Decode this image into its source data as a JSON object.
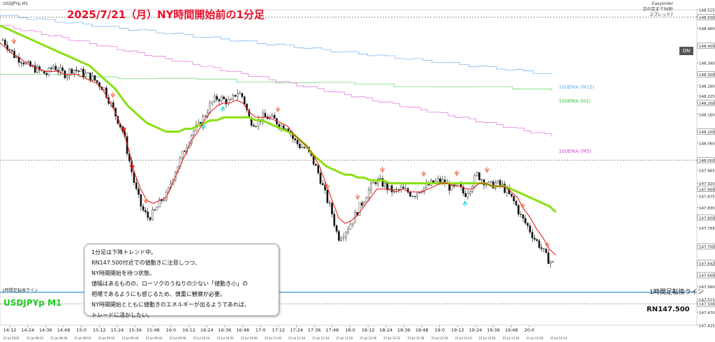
{
  "header": {
    "title": "2025/7/21（月）NY時間開始前の1分足",
    "symbol": "USDJPYp,M1",
    "top_right_1": "Easyorder",
    "top_right_2": "次の足まで56秒",
    "top_right_3": "スプレッド7",
    "on_button": "ON"
  },
  "ema_labels": {
    "m15": "100EMA (M15)",
    "h1": "100EMA (H1)",
    "m5": "100EMA (M5)"
  },
  "note": {
    "lines": [
      "1分足は下降トレンド中。",
      "RN147.500付近での値動きに注目しつつ、",
      "NY時間開始を待つ状態。",
      "値幅はあるものの、ローソクのうねりの少ない「値動き小」の",
      "相場であるようにも感じるため、慎重に観察が必要。",
      "NY時間開始とともに値動きのエネルギーが出るようであれば、",
      "トレードに活かしたい。"
    ]
  },
  "bottom": {
    "symbol_label": "USDJPYp M1",
    "rn_label": "RN147.500",
    "line_label_left": "1時間足転換ライン",
    "line_label_right": "1時間足転換ライン"
  },
  "colors": {
    "candle": "#111111",
    "ema_fast": "#e82020",
    "ema_slow": "#88e010",
    "ema_m15": "#6ab0f0",
    "ema_h1": "#60d060",
    "ema_m5": "#e070e0",
    "arrow_down": "#f08060",
    "arrow_up": "#40d8e8",
    "arrow_down_strong": "#d01010",
    "turn_line": "#3399dd"
  },
  "chart_data": {
    "type": "candlestick",
    "y_ticks": [
      "148.525",
      "148.500",
      "148.460",
      "148.400",
      "148.340",
      "148.300",
      "148.260",
      "148.225",
      "148.200",
      "148.160",
      "148.100",
      "148.060",
      "148.000",
      "147.965",
      "147.920",
      "147.900",
      "147.875",
      "147.835",
      "147.800",
      "147.765",
      "147.700",
      "147.642",
      "147.600",
      "147.560",
      "147.515",
      "147.500",
      "147.470",
      "147.425"
    ],
    "ylim": [
      147.425,
      148.525
    ],
    "x_major_ticks": [
      "14:12",
      "14:24",
      "14:36",
      "14:48",
      "15:0",
      "15:12",
      "15:24",
      "15:36",
      "15:48",
      "16:0",
      "16:12",
      "16:24",
      "16:36",
      "16:48",
      "17:0",
      "17:12",
      "17:24",
      "17:36",
      "17:48",
      "18:0",
      "18:12",
      "18:24",
      "18:36",
      "18:48",
      "19:0",
      "19:12",
      "19:24",
      "19:36",
      "19:48",
      "20:0"
    ],
    "x_minor_ticks": [
      "21 Jul 2025",
      "21 Jul 08:22",
      "21 Jul 08:38",
      "21 Jul 08:54",
      "21 Jul 09:10",
      "21 Jul 09:26",
      "21 Jul 09:42",
      "21 Jul 09:58",
      "21 Jul 10:14",
      "21 Jul 10:30",
      "21 Jul 10:46",
      "21 Jul 11:02",
      "21 Jul 11:18",
      "21 Jul 11:34",
      "21 Jul 11:50",
      "21 Jul 12:06",
      "21 Jul 12:22",
      "21 Jul 12:38",
      "21 Jul 12:54",
      "21 Jul 13:10",
      "21 Jul 13:26",
      "21 Jul 13:42",
      "21 Jul 13:58",
      "21 Jul 14:14"
    ],
    "dotted_levels": [
      148.5,
      148.0,
      147.5
    ],
    "turn_line_level": 147.54,
    "close_path": [
      148.42,
      148.39,
      148.36,
      148.35,
      148.33,
      148.32,
      148.31,
      148.3,
      148.33,
      148.31,
      148.3,
      148.32,
      148.31,
      148.3,
      148.29,
      148.27,
      148.25,
      148.2,
      148.15,
      148.1,
      148.0,
      147.9,
      147.83,
      147.8,
      147.82,
      147.86,
      147.88,
      147.95,
      148.0,
      148.05,
      148.1,
      148.12,
      148.16,
      148.2,
      148.22,
      148.21,
      148.2,
      148.24,
      148.22,
      148.14,
      148.13,
      148.15,
      148.15,
      148.14,
      148.12,
      148.12,
      148.07,
      148.05,
      148.04,
      148.0,
      147.95,
      147.88,
      147.82,
      147.73,
      147.75,
      147.78,
      147.82,
      147.86,
      147.9,
      147.93,
      147.92,
      147.9,
      147.89,
      147.9,
      147.89,
      147.88,
      147.9,
      147.91,
      147.92,
      147.93,
      147.92,
      147.9,
      147.91,
      147.88,
      147.91,
      147.95,
      147.93,
      147.91,
      147.92,
      147.91,
      147.88,
      147.85,
      147.8,
      147.77,
      147.73,
      147.7,
      147.66,
      147.64
    ],
    "ema_fast": [
      148.41,
      148.39,
      148.37,
      148.36,
      148.34,
      148.33,
      148.32,
      148.31,
      148.31,
      148.31,
      148.3,
      148.3,
      148.3,
      148.29,
      148.28,
      148.27,
      148.25,
      148.21,
      148.17,
      148.12,
      148.05,
      147.96,
      147.9,
      147.86,
      147.85,
      147.86,
      147.87,
      147.92,
      147.97,
      148.02,
      148.07,
      148.1,
      148.14,
      148.17,
      148.19,
      148.2,
      148.2,
      148.21,
      148.2,
      148.17,
      148.15,
      148.15,
      148.15,
      148.14,
      148.13,
      148.12,
      148.09,
      148.07,
      148.05,
      148.02,
      147.98,
      147.92,
      147.86,
      147.8,
      147.78,
      147.79,
      147.81,
      147.84,
      147.87,
      147.9,
      147.9,
      147.9,
      147.89,
      147.9,
      147.89,
      147.89,
      147.89,
      147.9,
      147.91,
      147.92,
      147.92,
      147.91,
      147.91,
      147.9,
      147.9,
      147.92,
      147.92,
      147.91,
      147.91,
      147.91,
      147.89,
      147.87,
      147.83,
      147.8,
      147.76,
      147.73,
      147.69,
      147.67
    ],
    "ema_slow": [
      148.47,
      148.46,
      148.45,
      148.44,
      148.43,
      148.42,
      148.41,
      148.4,
      148.39,
      148.38,
      148.37,
      148.36,
      148.35,
      148.34,
      148.33,
      148.31,
      148.29,
      148.27,
      148.25,
      148.22,
      148.19,
      148.17,
      148.15,
      148.13,
      148.12,
      148.11,
      148.1,
      148.1,
      148.1,
      148.11,
      148.11,
      148.12,
      148.13,
      148.14,
      148.14,
      148.15,
      148.15,
      148.15,
      148.15,
      148.15,
      148.14,
      148.14,
      148.13,
      148.12,
      148.11,
      148.1,
      148.09,
      148.07,
      148.05,
      148.02,
      148.0,
      147.98,
      147.97,
      147.96,
      147.95,
      147.95,
      147.94,
      147.94,
      147.93,
      147.93,
      147.93,
      147.92,
      147.92,
      147.92,
      147.92,
      147.92,
      147.92,
      147.92,
      147.92,
      147.92,
      147.92,
      147.92,
      147.92,
      147.92,
      147.92,
      147.92,
      147.92,
      147.91,
      147.91,
      147.91,
      147.9,
      147.89,
      147.88,
      147.87,
      147.86,
      147.85,
      147.84,
      147.82
    ]
  }
}
